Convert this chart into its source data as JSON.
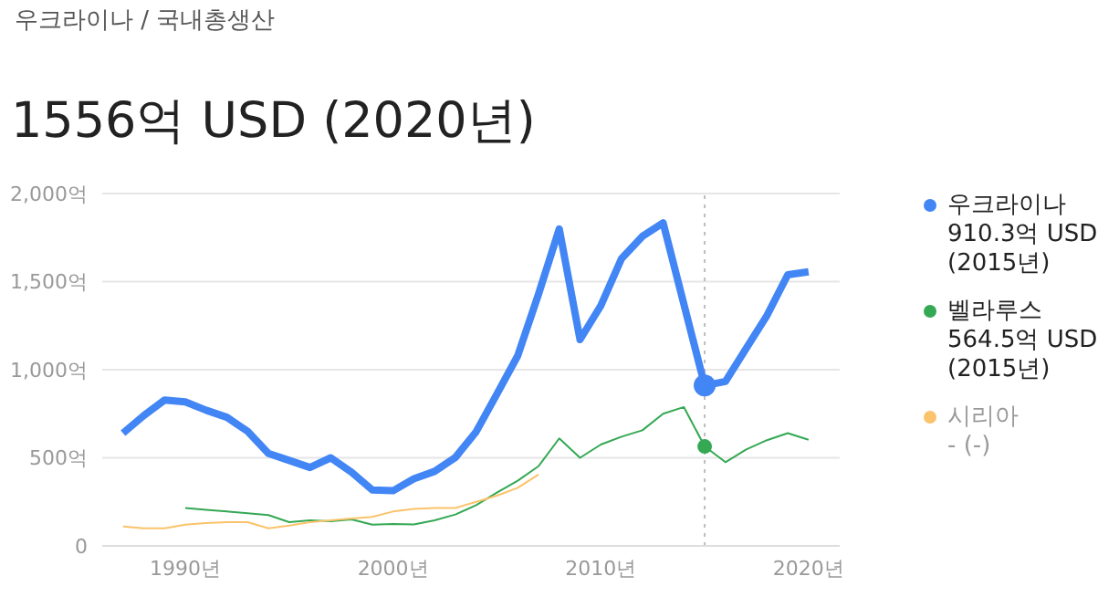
{
  "chart_data": {
    "type": "line",
    "subtitle": "우크라이나 / 국내총생산",
    "title": "1556억 USD (2020년)",
    "series": [
      {
        "name": "우크라이나",
        "color": "#4285f4",
        "x": [
          1987,
          1988,
          1989,
          1990,
          1991,
          1992,
          1993,
          1994,
          1995,
          1996,
          1997,
          1998,
          1999,
          2000,
          2001,
          2002,
          2003,
          2004,
          2005,
          2006,
          2007,
          2008,
          2009,
          2010,
          2011,
          2012,
          2013,
          2015,
          2016,
          2017,
          2018,
          2019,
          2020
        ],
        "values": [
          640,
          740,
          828,
          817,
          770,
          730,
          650,
          525,
          485,
          445,
          500,
          418,
          317,
          313,
          381,
          423,
          502,
          648,
          862,
          1079,
          1428,
          1799,
          1171,
          1363,
          1631,
          1757,
          1833,
          910.3,
          933,
          1121,
          1308,
          1539,
          1556
        ]
      },
      {
        "name": "벨라루스",
        "color": "#34a853",
        "x": [
          1990,
          1991,
          1992,
          1993,
          1994,
          1995,
          1996,
          1997,
          1998,
          1999,
          2000,
          2001,
          2002,
          2003,
          2004,
          2005,
          2006,
          2007,
          2008,
          2009,
          2010,
          2011,
          2012,
          2013,
          2014,
          2015,
          2016,
          2017,
          2018,
          2019,
          2020
        ],
        "values": [
          215,
          205,
          195,
          185,
          175,
          135,
          145,
          140,
          150,
          120,
          125,
          122,
          145,
          178,
          231,
          302,
          370,
          452,
          610,
          500,
          575,
          620,
          656,
          750,
          788,
          564.5,
          475,
          547,
          600,
          640,
          602
        ]
      },
      {
        "name": "시리아",
        "color": "#fbc36b",
        "x": [
          1987,
          1988,
          1989,
          1990,
          1991,
          1992,
          1993,
          1994,
          1995,
          1996,
          1997,
          1998,
          1999,
          2000,
          2001,
          2002,
          2003,
          2004,
          2005,
          2006,
          2007
        ],
        "values": [
          110,
          100,
          100,
          120,
          130,
          135,
          135,
          100,
          115,
          135,
          145,
          155,
          165,
          195,
          210,
          215,
          215,
          250,
          285,
          330,
          405
        ]
      }
    ],
    "annotations": [
      "910.3억 USD (2015년)",
      "564.5억 USD (2015년)",
      "- (-)"
    ],
    "ref_lines": [
      {
        "axis": "x",
        "value": 2015,
        "color": "#bdbdbd",
        "line_style": "dotted"
      }
    ],
    "xlim": [
      1986,
      2021.5
    ],
    "xticks": [
      {
        "value": 1990,
        "label": "1990년"
      },
      {
        "value": 2000,
        "label": "2000년"
      },
      {
        "value": 2010,
        "label": "2010년"
      },
      {
        "value": 2020,
        "label": "2020년"
      }
    ],
    "ylim": [
      0,
      2000
    ],
    "yticks": [
      {
        "value": 0,
        "label": "0"
      },
      {
        "value": 500,
        "label": "500억"
      },
      {
        "value": 1000,
        "label": "1,000억"
      },
      {
        "value": 1500,
        "label": "1,500억"
      },
      {
        "value": 2000,
        "label": "2,000억"
      }
    ],
    "grid": "y",
    "legend": "right",
    "marker": "none",
    "line_style": "solid"
  }
}
